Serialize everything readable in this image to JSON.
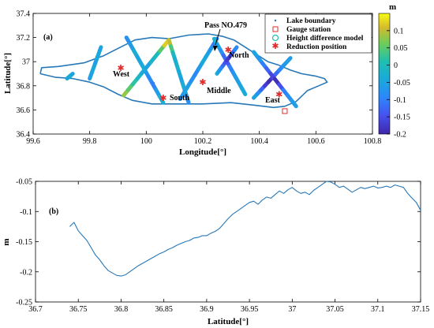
{
  "chart_data": [
    {
      "type": "scatter",
      "panel_label": "(a)",
      "xlabel": "Longitude[°]",
      "ylabel": "Latitude[°]",
      "xlim": [
        99.6,
        100.8
      ],
      "ylim": [
        36.4,
        37.4
      ],
      "xticks": [
        "99.6",
        "99.8",
        "100",
        "100.2",
        "100.4",
        "100.6",
        "100.8"
      ],
      "yticks": [
        "36.4",
        "36.6",
        "36.8",
        "37",
        "37.2",
        "37.4"
      ],
      "legend": {
        "position": "top-right",
        "entries": [
          "Lake boundary",
          "Gauge station",
          "Height difference model",
          "Reduction position"
        ]
      },
      "colorbar": {
        "unit": "m",
        "range": [
          -0.2,
          0.15
        ],
        "ticks": [
          "0.1",
          "0.05",
          "0",
          "-0.05",
          "-0.1",
          "-0.15",
          "-0.2"
        ]
      },
      "annotations": {
        "pass": "Pass NO.479",
        "north": "North",
        "west": "West",
        "south": "South",
        "middle": "Middle",
        "east": "East"
      },
      "reduction_positions": [
        {
          "name": "West",
          "lon": 99.91,
          "lat": 36.95
        },
        {
          "name": "South",
          "lon": 100.06,
          "lat": 36.7
        },
        {
          "name": "Middle",
          "lon": 100.2,
          "lat": 36.83
        },
        {
          "name": "North",
          "lon": 100.29,
          "lat": 37.1
        },
        {
          "name": "East",
          "lon": 100.47,
          "lat": 36.73
        }
      ],
      "gauge_station": {
        "lon": 100.49,
        "lat": 36.59
      },
      "lake_boundary": [
        [
          99.625,
          36.9
        ],
        [
          99.63,
          36.95
        ],
        [
          99.69,
          36.96
        ],
        [
          99.78,
          36.99
        ],
        [
          99.85,
          37.05
        ],
        [
          99.9,
          37.11
        ],
        [
          99.96,
          37.18
        ],
        [
          100.02,
          37.2
        ],
        [
          100.08,
          37.19
        ],
        [
          100.15,
          37.22
        ],
        [
          100.22,
          37.23
        ],
        [
          100.27,
          37.21
        ],
        [
          100.31,
          37.18
        ],
        [
          100.35,
          37.12
        ],
        [
          100.39,
          37.06
        ],
        [
          100.43,
          37.0
        ],
        [
          100.47,
          36.97
        ],
        [
          100.51,
          36.93
        ],
        [
          100.55,
          36.9
        ],
        [
          100.6,
          36.88
        ],
        [
          100.63,
          36.86
        ],
        [
          100.64,
          36.83
        ],
        [
          100.61,
          36.8
        ],
        [
          100.57,
          36.76
        ],
        [
          100.53,
          36.67
        ],
        [
          100.49,
          36.63
        ],
        [
          100.45,
          36.62
        ],
        [
          100.38,
          36.64
        ],
        [
          100.3,
          36.66
        ],
        [
          100.2,
          36.65
        ],
        [
          100.1,
          36.65
        ],
        [
          100.02,
          36.65
        ],
        [
          99.95,
          36.68
        ],
        [
          99.9,
          36.73
        ],
        [
          99.85,
          36.79
        ],
        [
          99.8,
          36.83
        ],
        [
          99.74,
          36.86
        ],
        [
          99.68,
          36.87
        ],
        [
          99.625,
          36.9
        ]
      ],
      "tracks": [
        {
          "from": [
            99.93,
            37.2
          ],
          "to": [
            100.06,
            36.66
          ],
          "values": [
            -0.08,
            -0.06,
            -0.03,
            -0.05,
            -0.04,
            -0.07,
            -0.09,
            -0.1,
            -0.06,
            -0.03
          ]
        },
        {
          "from": [
            99.92,
            36.72
          ],
          "to": [
            100.08,
            37.18
          ],
          "values": [
            0.08,
            0.05,
            0.02,
            -0.01,
            -0.04,
            -0.05,
            -0.02,
            0.0,
            0.05,
            0.12
          ]
        },
        {
          "from": [
            100.08,
            37.18
          ],
          "to": [
            100.15,
            36.66
          ],
          "values": [
            0.1,
            0.04,
            -0.01,
            -0.03,
            -0.02,
            -0.04,
            -0.05,
            -0.03,
            -0.06,
            -0.08
          ]
        },
        {
          "from": [
            100.12,
            36.69
          ],
          "to": [
            100.25,
            37.19
          ],
          "values": [
            -0.07,
            -0.05,
            -0.06,
            -0.08,
            -0.09,
            -0.06,
            -0.04,
            -0.05,
            -0.07,
            -0.1
          ]
        },
        {
          "from": [
            100.24,
            37.19
          ],
          "to": [
            100.35,
            36.73
          ],
          "values": [
            -0.02,
            -0.05,
            -0.08,
            -0.12,
            -0.14,
            -0.1,
            -0.07,
            -0.06,
            -0.05,
            -0.04
          ]
        },
        {
          "from": [
            100.25,
            36.9
          ],
          "to": [
            100.32,
            37.12
          ],
          "values": [
            -0.04,
            -0.06,
            -0.09,
            -0.12,
            -0.15,
            -0.17,
            -0.18,
            -0.16,
            -0.12,
            -0.09
          ]
        },
        {
          "from": [
            100.38,
            36.7
          ],
          "to": [
            100.51,
            37.03
          ],
          "values": [
            -0.05,
            -0.08,
            -0.13,
            -0.17,
            -0.19,
            -0.16,
            -0.12,
            -0.09,
            -0.07,
            -0.06
          ]
        },
        {
          "from": [
            100.38,
            37.08
          ],
          "to": [
            100.53,
            36.63
          ],
          "values": [
            -0.05,
            -0.07,
            -0.1,
            -0.13,
            -0.16,
            -0.19,
            -0.15,
            -0.1,
            -0.08,
            -0.06
          ]
        },
        {
          "from": [
            99.72,
            36.86
          ],
          "to": [
            99.74,
            36.9
          ],
          "values": [
            -0.04,
            -0.03,
            -0.04,
            -0.05,
            -0.05,
            -0.04,
            -0.03,
            -0.03,
            -0.04,
            -0.05
          ]
        },
        {
          "from": [
            99.8,
            36.86
          ],
          "to": [
            99.84,
            37.12
          ],
          "values": [
            -0.06,
            -0.05,
            -0.05,
            -0.04,
            -0.05,
            -0.06,
            -0.05,
            -0.04,
            -0.04,
            -0.05
          ]
        }
      ]
    },
    {
      "type": "line",
      "panel_label": "(b)",
      "xlabel": "Latitude[°]",
      "ylabel": "m",
      "xlim": [
        36.7,
        37.15
      ],
      "ylim": [
        -0.25,
        -0.05
      ],
      "xticks": [
        "36.7",
        "36.75",
        "36.8",
        "36.85",
        "36.9",
        "36.95",
        "37",
        "37.05",
        "37.1",
        "37.15"
      ],
      "yticks": [
        "-0.05",
        "-0.1",
        "-0.15",
        "-0.2",
        "-0.25"
      ],
      "series": [
        {
          "x": [
            36.74,
            36.745,
            36.75,
            36.755,
            36.76,
            36.765,
            36.77,
            36.775,
            36.78,
            36.785,
            36.79,
            36.795,
            36.8,
            36.805,
            36.81,
            36.815,
            36.82,
            36.825,
            36.83,
            36.835,
            36.84,
            36.845,
            36.85,
            36.855,
            36.86,
            36.865,
            36.87,
            36.875,
            36.88,
            36.885,
            36.89,
            36.895,
            36.9,
            36.905,
            36.91,
            36.915,
            36.92,
            36.925,
            36.93,
            36.935,
            36.94,
            36.945,
            36.95,
            36.955,
            36.96,
            36.965,
            36.97,
            36.975,
            36.98,
            36.985,
            36.99,
            36.995,
            37.0,
            37.005,
            37.01,
            37.015,
            37.02,
            37.025,
            37.03,
            37.035,
            37.04,
            37.045,
            37.05,
            37.055,
            37.06,
            37.065,
            37.07,
            37.075,
            37.08,
            37.085,
            37.09,
            37.095,
            37.1,
            37.105,
            37.11,
            37.115,
            37.12,
            37.125,
            37.13,
            37.135,
            37.14,
            37.145,
            37.15
          ],
          "y": [
            -0.125,
            -0.118,
            -0.132,
            -0.14,
            -0.148,
            -0.16,
            -0.172,
            -0.18,
            -0.19,
            -0.198,
            -0.202,
            -0.206,
            -0.207,
            -0.205,
            -0.2,
            -0.195,
            -0.19,
            -0.186,
            -0.182,
            -0.178,
            -0.174,
            -0.17,
            -0.167,
            -0.163,
            -0.16,
            -0.156,
            -0.153,
            -0.15,
            -0.148,
            -0.144,
            -0.143,
            -0.14,
            -0.14,
            -0.136,
            -0.133,
            -0.128,
            -0.12,
            -0.112,
            -0.105,
            -0.1,
            -0.095,
            -0.09,
            -0.085,
            -0.083,
            -0.088,
            -0.081,
            -0.076,
            -0.078,
            -0.072,
            -0.066,
            -0.07,
            -0.064,
            -0.06,
            -0.066,
            -0.07,
            -0.068,
            -0.072,
            -0.065,
            -0.06,
            -0.055,
            -0.05,
            -0.051,
            -0.055,
            -0.06,
            -0.058,
            -0.063,
            -0.068,
            -0.064,
            -0.06,
            -0.062,
            -0.06,
            -0.058,
            -0.061,
            -0.06,
            -0.058,
            -0.06,
            -0.056,
            -0.058,
            -0.06,
            -0.07,
            -0.078,
            -0.085,
            -0.098
          ]
        }
      ]
    }
  ]
}
